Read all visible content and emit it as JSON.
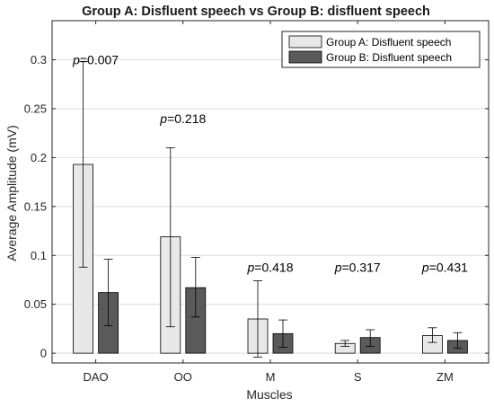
{
  "chart_data": {
    "type": "bar",
    "title": "Group A: Disfluent speech vs Group B: disfluent speech",
    "xlabel": "Muscles",
    "ylabel": "Average Amplitude (mV)",
    "ylim": [
      -0.01,
      0.34
    ],
    "yticks": [
      0,
      0.05,
      0.1,
      0.15,
      0.2,
      0.25,
      0.3
    ],
    "ytick_labels": [
      "0",
      "0.05",
      "0.1",
      "0.15",
      "0.2",
      "0.25",
      "0.3"
    ],
    "grid": true,
    "legend_position": "top-right",
    "categories": [
      "DAO",
      "OO",
      "M",
      "S",
      "ZM"
    ],
    "series": [
      {
        "name": "Group A: Disfluent speech",
        "color": "#e8e8e8",
        "values": [
          0.193,
          0.119,
          0.035,
          0.01,
          0.018
        ],
        "err_low": [
          0.088,
          0.027,
          -0.004,
          0.007,
          0.011
        ],
        "err_high": [
          0.298,
          0.21,
          0.074,
          0.013,
          0.026
        ]
      },
      {
        "name": "Group B: Disfluent speech",
        "color": "#5a5a5a",
        "values": [
          0.062,
          0.067,
          0.02,
          0.016,
          0.013
        ],
        "err_low": [
          0.028,
          0.037,
          0.006,
          0.007,
          0.005
        ],
        "err_high": [
          0.096,
          0.098,
          0.034,
          0.024,
          0.021
        ]
      }
    ],
    "annotations": [
      {
        "category": "DAO",
        "value": 0.3,
        "label": "p=0.007",
        "italic_part": "p",
        "rest": "=0.007"
      },
      {
        "category": "OO",
        "value": 0.24,
        "label": "p=0.218",
        "italic_part": "p",
        "rest": "=0.218"
      },
      {
        "category": "M",
        "value": 0.088,
        "label": "p=0.418",
        "italic_part": "p",
        "rest": "=0.418"
      },
      {
        "category": "S",
        "value": 0.088,
        "label": "p=0.317",
        "italic_part": "p",
        "rest": "=0.317"
      },
      {
        "category": "ZM",
        "value": 0.088,
        "label": "p=0.431",
        "italic_part": "p",
        "rest": "=0.431"
      }
    ]
  }
}
